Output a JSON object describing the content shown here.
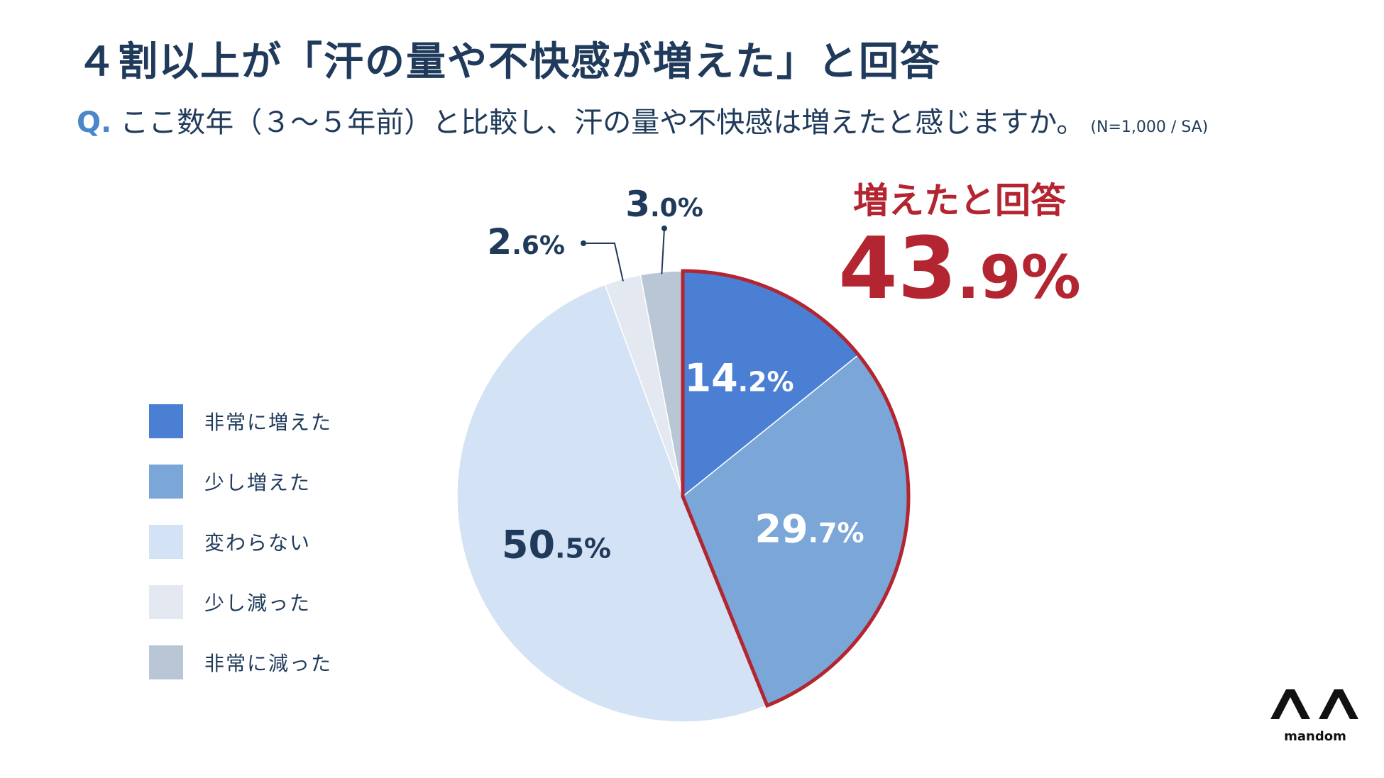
{
  "header": {
    "title": "４割以上が「汗の量や不快感が増えた」と回答",
    "question_prefix": "Q.",
    "question": "ここ数年（３～５年前）と比較し、汗の量や不快感は増えたと感じますか。",
    "note": "(N=1,000 / SA)"
  },
  "callout": {
    "label": "増えたと回答",
    "value": "43.9%",
    "color": "#b32530"
  },
  "chart_data": {
    "type": "pie",
    "unit": "%",
    "categories": [
      "非常に増えた",
      "少し増えた",
      "変わらない",
      "少し減った",
      "非常に減った"
    ],
    "values": [
      14.2,
      29.7,
      50.5,
      2.6,
      3.0
    ],
    "labels": [
      "14.2%",
      "29.7%",
      "50.5%",
      "2.6%",
      "3.0%"
    ],
    "colors": [
      "#4a7fd4",
      "#7ba6d8",
      "#d3e2f4",
      "#e4e9f1",
      "#b9c6d6"
    ],
    "label_colors": [
      "#ffffff",
      "#ffffff",
      "#1f3a5a",
      "#1f3a5a",
      "#1f3a5a"
    ],
    "start": "12 o'clock",
    "direction": "clockwise",
    "highlight": {
      "slices": [
        0,
        1
      ],
      "outline_color": "#b32530"
    },
    "legend": "left"
  },
  "brand": {
    "name": "mandom"
  }
}
